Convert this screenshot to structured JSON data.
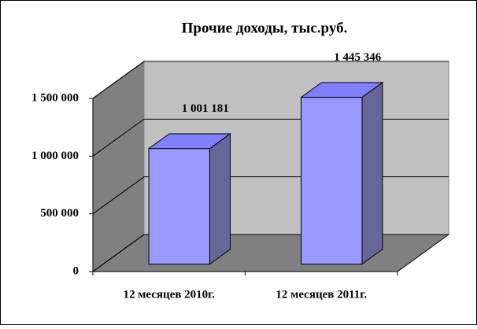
{
  "chart_data": {
    "type": "bar3d",
    "title": "Прочие доходы, тыс.руб.",
    "categories": [
      "12 месяцев 2010г.",
      "12 месяцев 2011г."
    ],
    "values": [
      1001181,
      1445346
    ],
    "value_labels": [
      "1 001 181",
      "1 445 346"
    ],
    "color": "#9999ff",
    "ylim": [
      0,
      1500000
    ],
    "yticks": [
      0,
      {
        "value": 500000,
        "label": "500 000"
      },
      {
        "value": 1000000,
        "label": "1 000 000"
      },
      {
        "value": 1500000,
        "label": "1 500 000"
      }
    ],
    "grid": true
  }
}
